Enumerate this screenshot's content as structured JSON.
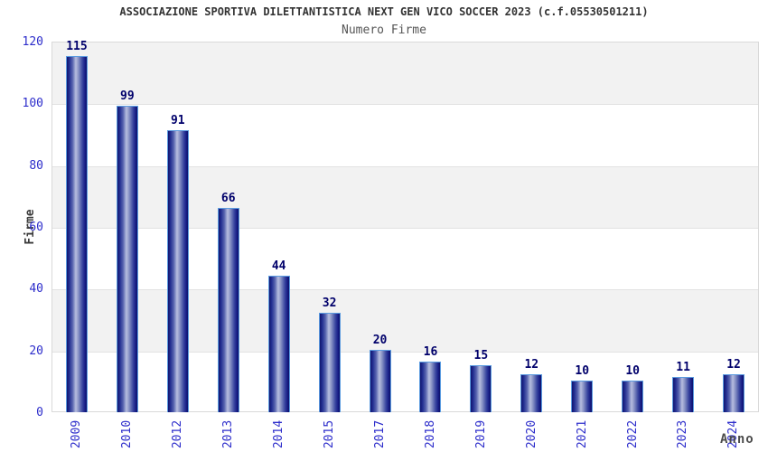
{
  "chart_data": {
    "type": "bar",
    "title": "ASSOCIAZIONE SPORTIVA DILETTANTISTICA NEXT GEN VICO SOCCER 2023 (c.f.05530501211)",
    "subtitle": "Numero Firme",
    "xlabel": "Anno",
    "ylabel": "Firme",
    "categories": [
      "2009",
      "2010",
      "2012",
      "2013",
      "2014",
      "2015",
      "2017",
      "2018",
      "2019",
      "2020",
      "2021",
      "2022",
      "2023",
      "2024"
    ],
    "values": [
      115,
      99,
      91,
      66,
      44,
      32,
      20,
      16,
      15,
      12,
      10,
      10,
      11,
      12
    ],
    "ylim": [
      0,
      120
    ],
    "yticks": [
      0,
      20,
      40,
      60,
      80,
      100,
      120
    ],
    "grid": "alternating-horizontal-bands",
    "legend": false,
    "colors": {
      "bar_dark": "#10156f",
      "bar_highlight": "#b7bedf",
      "bar_border": "#5b9be0",
      "value_label": "#00006b",
      "tick_label": "#2d2dcb",
      "band_gray": "#f2f2f2",
      "plot_border": "#d9d9d9",
      "title": "#333333",
      "subtitle": "#555555",
      "axis_title": "#4d4d4d"
    }
  }
}
